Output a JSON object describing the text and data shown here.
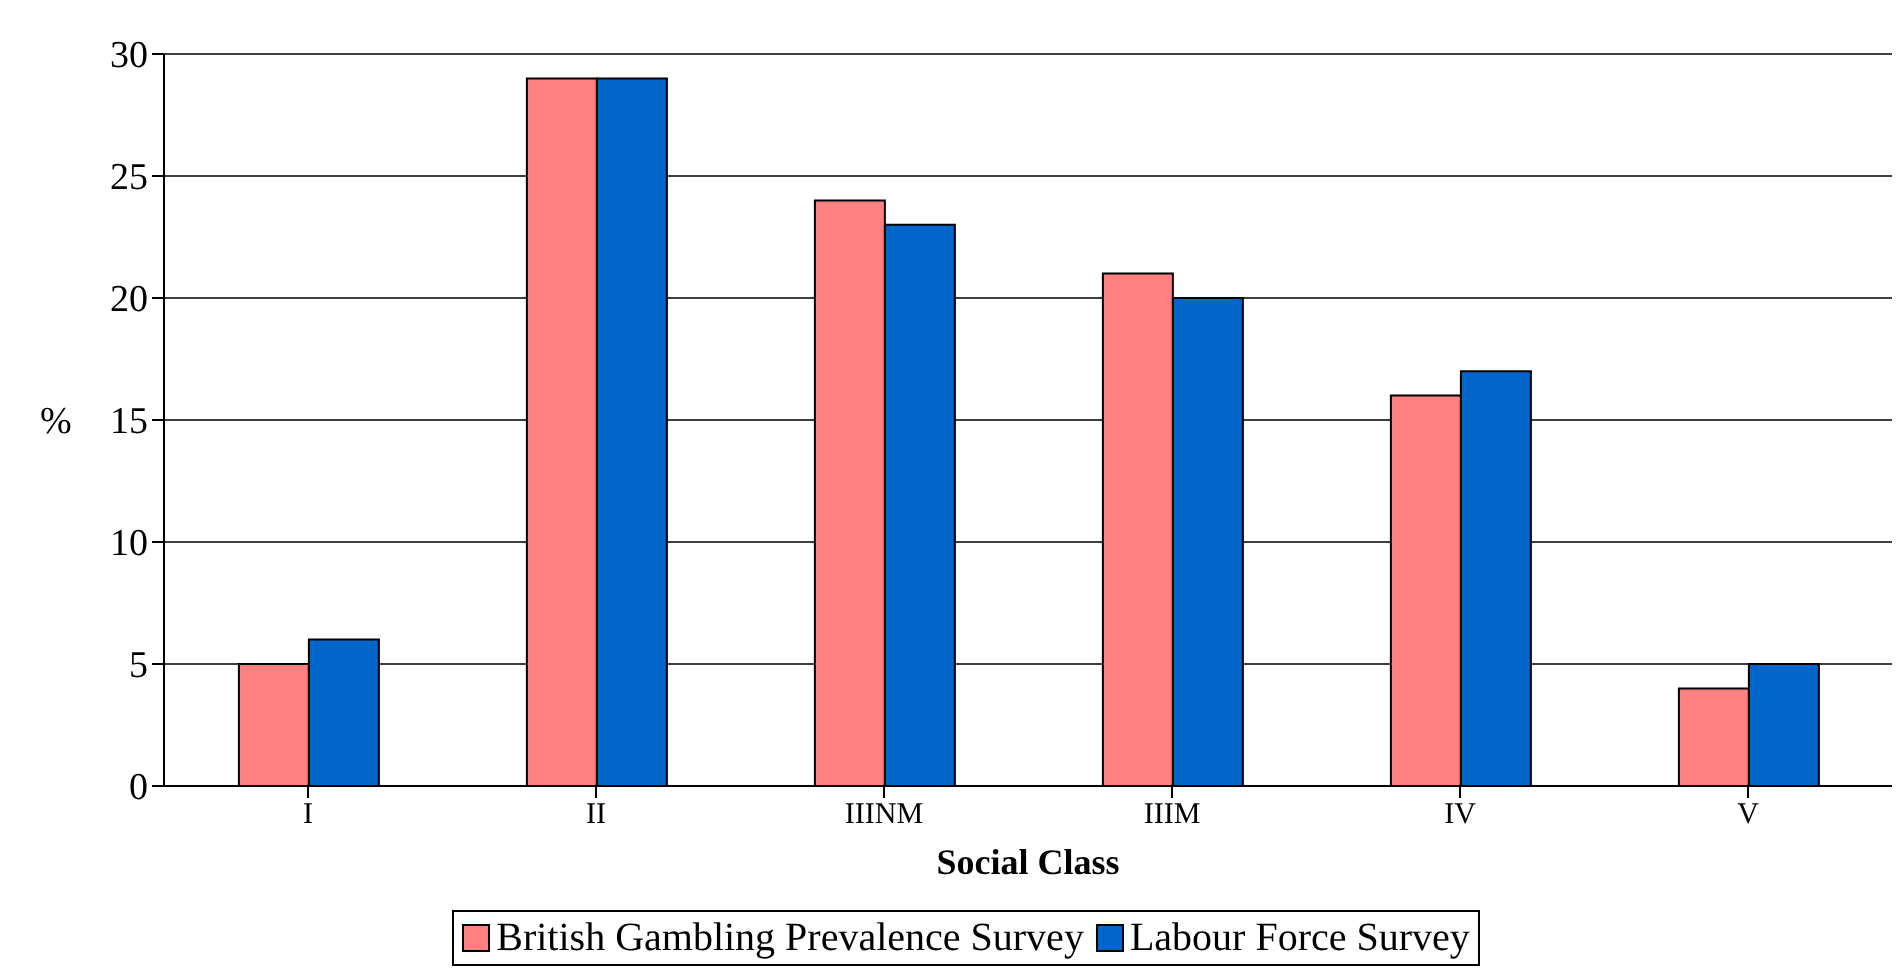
{
  "chart_data": {
    "type": "bar",
    "xlabel": "Social Class",
    "ylabel": "%",
    "categories": [
      "I",
      "II",
      "IIINM",
      "IIIM",
      "IV",
      "V"
    ],
    "series": [
      {
        "name": "British Gambling Prevalence Survey",
        "color": "#ff8080",
        "values": [
          5,
          29,
          24,
          21,
          16,
          4
        ]
      },
      {
        "name": "Labour Force Survey",
        "color": "#0066cc",
        "values": [
          6,
          29,
          23,
          20,
          17,
          5
        ]
      }
    ],
    "ylim": [
      0,
      30
    ],
    "yticks": [
      0,
      5,
      10,
      15,
      20,
      25,
      30
    ],
    "grid": "y",
    "legend": "bottom"
  }
}
